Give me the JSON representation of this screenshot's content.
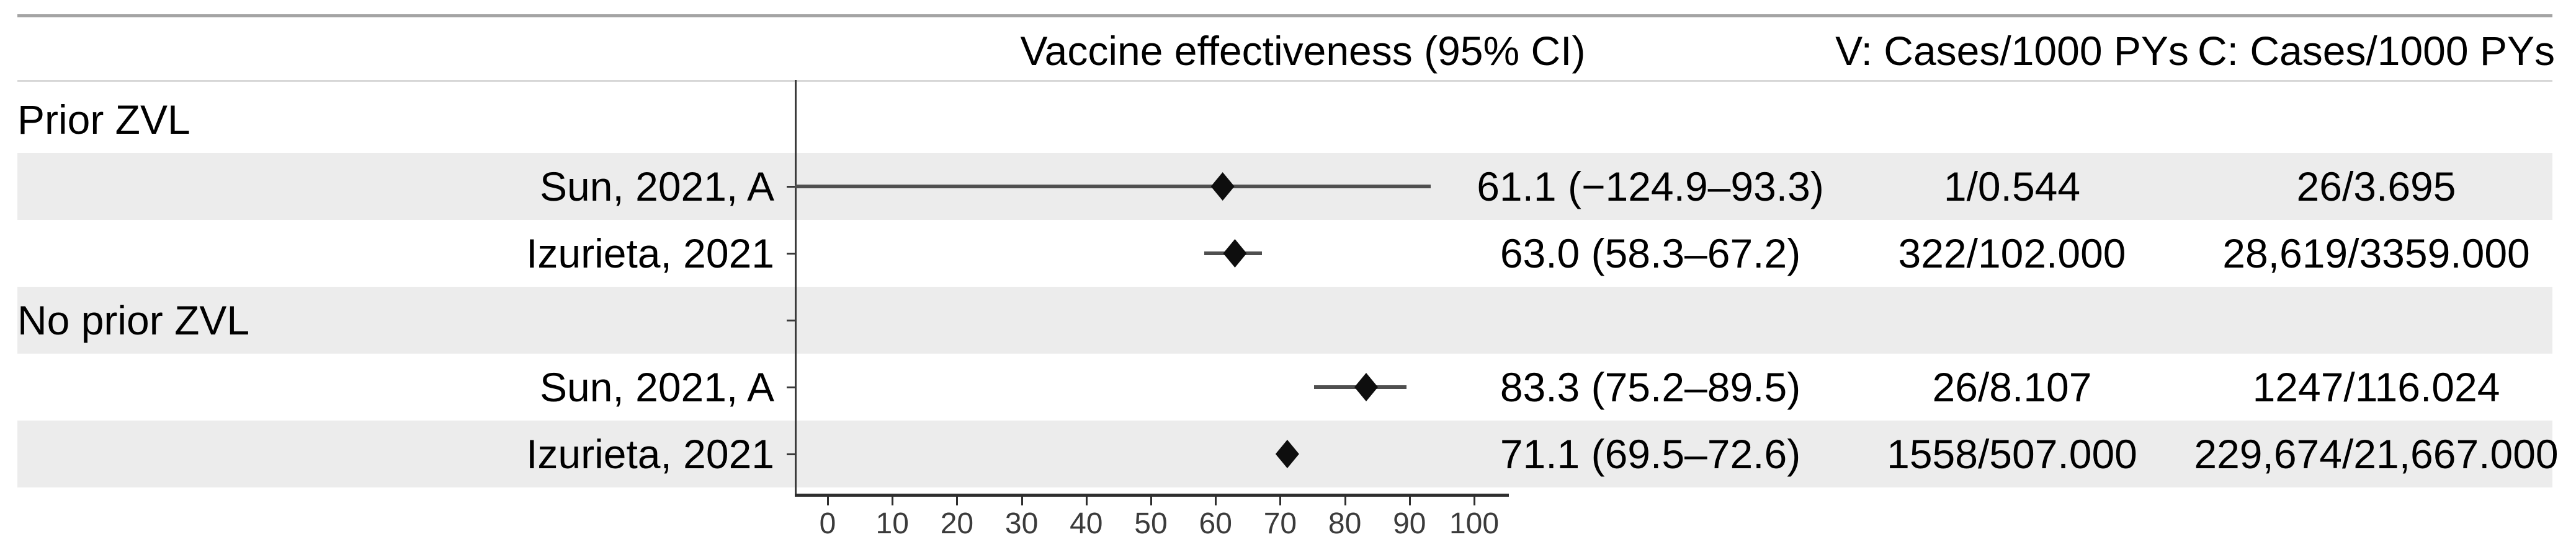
{
  "chart_data": {
    "type": "scatter",
    "subtype": "forest-plot",
    "effect_header": "Vaccine effectiveness (95% CI)",
    "v_header": "V: Cases/1000 PYs",
    "c_header": "C: Cases/1000 PYs",
    "xaxis": {
      "ticks": [
        0,
        10,
        20,
        30,
        40,
        50,
        60,
        70,
        80,
        90,
        100
      ],
      "range": [
        0,
        100
      ],
      "grid": false
    },
    "legend_position": "none",
    "rows": [
      {
        "kind": "group",
        "label": "Prior ZVL",
        "shaded": false
      },
      {
        "kind": "study",
        "label": "Sun, 2021, A",
        "shaded": true,
        "estimate": 61.1,
        "ci_lower": -124.9,
        "ci_upper": 93.3,
        "effect_text": "61.1 (−124.9–93.3)",
        "v_text": "1/0.544",
        "c_text": "26/3.695"
      },
      {
        "kind": "study",
        "label": "Izurieta, 2021",
        "shaded": false,
        "estimate": 63.0,
        "ci_lower": 58.3,
        "ci_upper": 67.2,
        "effect_text": "63.0 (58.3–67.2)",
        "v_text": "322/102.000",
        "c_text": "28,619/3359.000"
      },
      {
        "kind": "group",
        "label": "No prior ZVL",
        "shaded": true
      },
      {
        "kind": "study",
        "label": "Sun, 2021, A",
        "shaded": false,
        "estimate": 83.3,
        "ci_lower": 75.2,
        "ci_upper": 89.5,
        "effect_text": "83.3 (75.2–89.5)",
        "v_text": "26/8.107",
        "c_text": "1247/116.024"
      },
      {
        "kind": "study",
        "label": "Izurieta, 2021",
        "shaded": true,
        "estimate": 71.1,
        "ci_lower": 69.5,
        "ci_upper": 72.6,
        "effect_text": "71.1 (69.5–72.6)",
        "v_text": "1558/507.000",
        "c_text": "229,674/21,667.000"
      }
    ],
    "colors": {
      "band": "#ececec",
      "axis": "#3a3a3a",
      "ci_line": "#4f4f4f",
      "diamond": "#0e0e0e",
      "top_rule": "#a4a4a4",
      "header_rule": "#d7d7d7"
    }
  }
}
